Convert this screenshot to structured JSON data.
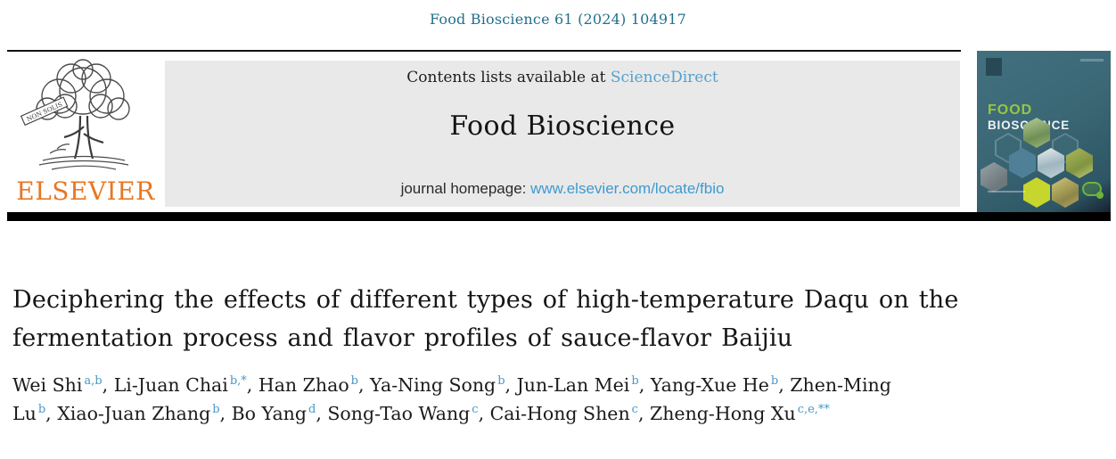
{
  "page": {
    "citation": "Food Bioscience 61 (2024) 104917"
  },
  "journal_header": {
    "contents_prefix": "Contents lists available at ",
    "contents_link": "ScienceDirect",
    "journal_title": "Food Bioscience",
    "homepage_prefix": "journal homepage: ",
    "homepage_url": "www.elsevier.com/locate/fbio"
  },
  "publisher": {
    "name": "ELSEVIER",
    "logo_banner_text": "NON SOLIS"
  },
  "cover": {
    "title_line1": "FOOD",
    "title_line2": "BIOSCIENCE"
  },
  "article": {
    "title": "Deciphering the effects of different types of high-temperature Daqu on the fermentation process and flavor profiles of sauce-flavor Baijiu",
    "authors": [
      {
        "name": "Wei Shi",
        "sup": "a,b"
      },
      {
        "name": "Li-Juan Chai",
        "sup": "b,*"
      },
      {
        "name": "Han Zhao",
        "sup": "b"
      },
      {
        "name": "Ya-Ning Song",
        "sup": "b"
      },
      {
        "name": "Jun-Lan Mei",
        "sup": "b"
      },
      {
        "name": "Yang-Xue He",
        "sup": "b"
      },
      {
        "name": "Zhen-Ming Lu",
        "sup": "b"
      },
      {
        "name": "Xiao-Juan Zhang",
        "sup": "b"
      },
      {
        "name": "Bo Yang",
        "sup": "d"
      },
      {
        "name": "Song-Tao Wang",
        "sup": "c"
      },
      {
        "name": "Cai-Hong Shen",
        "sup": "c"
      },
      {
        "name": "Zheng-Hong Xu",
        "sup": "c,e,**"
      }
    ]
  },
  "colors": {
    "citation_teal": "#23708d",
    "sciencedirect_link_blue": "#55a1cf",
    "homepage_url_blue": "#3d9ad1",
    "superscript_blue": "#4a97c5",
    "elsevier_orange": "#e87722",
    "header_box_gray": "#e9e9e9",
    "cover_teal": "#3c6876",
    "cover_green": "#94c83d",
    "cover_lime": "#c6d62c"
  }
}
